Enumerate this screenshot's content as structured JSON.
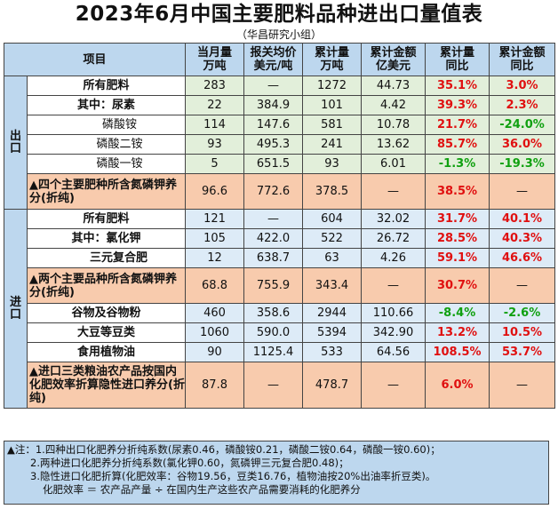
{
  "title": "2023年6月中国主要肥料品种进出口量值表",
  "subtitle": "（华昌研究小组）",
  "headers": {
    "item": "项目",
    "col1": [
      "当月量",
      "万吨"
    ],
    "col2": [
      "报关均价",
      "美元/吨"
    ],
    "col3": [
      "累计量",
      "万吨"
    ],
    "col4": [
      "累计金额",
      "亿美元"
    ],
    "col5": [
      "累计量",
      "同比"
    ],
    "col6": [
      "累计金额",
      "同比"
    ]
  },
  "export_label": "出\n口",
  "import_label": "进\n口",
  "export_rows": [
    {
      "name": "所有肥料",
      "v": [
        "283",
        "—",
        "1272",
        "44.73",
        "35.1%",
        "3.0%"
      ]
    },
    {
      "name": "其中：尿素",
      "v": [
        "22",
        "384.9",
        "101",
        "4.42",
        "39.3%",
        "2.3%"
      ]
    },
    {
      "name": "磷酸铵",
      "v": [
        "114",
        "147.6",
        "581",
        "10.78",
        "21.7%",
        "-24.0%"
      ]
    },
    {
      "name": "磷酸二铵",
      "v": [
        "93",
        "495.3",
        "241",
        "13.62",
        "85.7%",
        "36.0%"
      ]
    },
    {
      "name": "磷酸一铵",
      "v": [
        "5",
        "651.5",
        "93",
        "6.01",
        "-1.3%",
        "-19.3%"
      ]
    },
    {
      "name": "▲四个主要肥种所含氮磷钾养分(折纯)",
      "v": [
        "96.6",
        "772.6",
        "378.5",
        "—",
        "38.5%",
        "—"
      ]
    }
  ],
  "import_rows": [
    {
      "name": "所有肥料",
      "v": [
        "121",
        "—",
        "604",
        "32.02",
        "31.7%",
        "40.1%"
      ]
    },
    {
      "name": "其中：氯化钾",
      "v": [
        "105",
        "422.0",
        "522",
        "26.72",
        "28.5%",
        "40.3%"
      ]
    },
    {
      "name": "三元复合肥",
      "v": [
        "12",
        "638.7",
        "63",
        "4.26",
        "59.1%",
        "46.6%"
      ]
    },
    {
      "name": "▲两个主要品种所含氮磷钾养分(折纯)",
      "v": [
        "68.8",
        "755.9",
        "343.4",
        "—",
        "30.7%",
        "—"
      ]
    },
    {
      "name": "谷物及谷物粉",
      "v": [
        "460",
        "358.6",
        "2944",
        "110.66",
        "-8.4%",
        "-2.6%"
      ]
    },
    {
      "name": "大豆等豆类",
      "v": [
        "1060",
        "590.0",
        "5394",
        "342.90",
        "13.2%",
        "10.5%"
      ]
    },
    {
      "name": "食用植物油",
      "v": [
        "90",
        "1125.4",
        "533",
        "64.56",
        "108.5%",
        "53.7%"
      ]
    },
    {
      "name": "▲进口三类粮油农产品按国内化肥效率折算隐性进口养分(折纯)",
      "v": [
        "87.8",
        "—",
        "478.7",
        "—",
        "6.0%",
        "—"
      ]
    }
  ],
  "notes": [
    "▲注：1.四种出口化肥养分折纯系数(尿素0.46，磷酸铵0.21，磷酸二铵0.64，磷酸一铵0.60)；",
    "2.两种进口化肥养分折纯系数(氯化钾0.60，氮磷钾三元复合肥0.48)；",
    "3.隐性进口化肥折算(化肥效率：谷物19.56，豆类16.76，植物油按20%出油率折豆类)。",
    "化肥效率 ＝ 农产品产量 ÷ 在国内生产这些农产品需要消耗的化肥养分"
  ],
  "colors": {
    "header": "#bdd7ee",
    "export_num": "#e2efda",
    "import_num": "#ddebf7",
    "highlight": "#f8cbad",
    "up": "#e01010",
    "down": "#10a010"
  }
}
